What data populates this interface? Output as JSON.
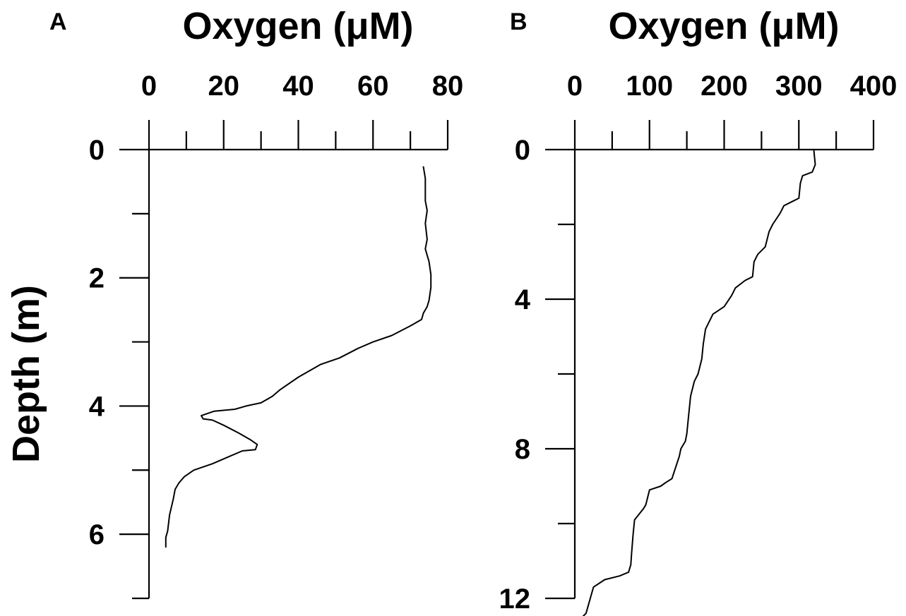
{
  "chart_data": [
    {
      "type": "line",
      "panel_label": "A",
      "xlabel": "Oxygen (μM)",
      "ylabel": "Depth (m)",
      "xlim": [
        0,
        80
      ],
      "ylim": [
        0,
        7
      ],
      "y_inverted": true,
      "x_axis_position": "top",
      "grid": false,
      "x_ticks": [
        0,
        20,
        40,
        60,
        80
      ],
      "x_minor_ticks": [
        10,
        30,
        50,
        70
      ],
      "y_ticks": [
        0,
        2,
        4,
        6
      ],
      "y_minor_ticks": [
        1,
        3,
        5,
        7
      ],
      "series": [
        {
          "x": [
            73.5,
            74,
            74,
            74.5,
            74,
            74.5,
            74,
            75,
            75.5,
            75.5,
            75,
            74.5,
            73.5,
            73,
            70,
            65,
            60,
            56,
            51,
            46,
            40,
            35,
            33,
            30,
            26,
            23,
            17.5,
            14,
            14.5,
            17,
            20,
            24,
            27,
            29,
            28.5,
            25,
            21,
            17,
            12,
            9.5,
            8,
            7,
            6.5,
            5.5,
            5,
            4.5,
            4.5
          ],
          "y": [
            0.27,
            0.45,
            0.8,
            0.95,
            1.15,
            1.4,
            1.55,
            1.75,
            1.95,
            2.15,
            2.35,
            2.45,
            2.55,
            2.65,
            2.75,
            2.9,
            3.0,
            3.1,
            3.25,
            3.35,
            3.55,
            3.75,
            3.85,
            3.95,
            4.0,
            4.05,
            4.08,
            4.15,
            4.2,
            4.22,
            4.3,
            4.42,
            4.52,
            4.6,
            4.68,
            4.7,
            4.8,
            4.9,
            5.0,
            5.1,
            5.2,
            5.3,
            5.45,
            5.7,
            5.95,
            6.05,
            6.2
          ]
        }
      ]
    },
    {
      "type": "line",
      "panel_label": "B",
      "xlabel": "Oxygen (μM)",
      "ylabel": "",
      "xlim": [
        0,
        400
      ],
      "ylim": [
        0,
        12
      ],
      "y_inverted": true,
      "x_axis_position": "top",
      "grid": false,
      "x_ticks": [
        0,
        100,
        200,
        300,
        400
      ],
      "x_minor_ticks": [
        50,
        150,
        250,
        350
      ],
      "y_ticks": [
        0,
        4,
        8,
        12
      ],
      "y_minor_ticks": [
        2,
        6,
        10
      ],
      "series": [
        {
          "x": [
            320,
            322,
            318,
            305,
            302,
            300,
            290,
            280,
            275,
            265,
            260,
            255,
            245,
            240,
            238,
            228,
            215,
            210,
            200,
            185,
            175,
            172,
            170,
            165,
            160,
            155,
            152,
            150,
            148,
            142,
            140,
            130,
            122,
            115,
            100,
            95,
            92,
            80,
            78,
            76,
            75,
            72,
            60,
            40,
            25,
            15,
            5
          ],
          "y": [
            0.0,
            0.4,
            0.6,
            0.7,
            0.9,
            1.3,
            1.4,
            1.5,
            1.7,
            2.0,
            2.2,
            2.6,
            2.8,
            3.0,
            3.4,
            3.5,
            3.7,
            3.9,
            4.2,
            4.4,
            4.8,
            5.2,
            5.6,
            6.0,
            6.2,
            6.6,
            7.2,
            7.6,
            7.8,
            8.0,
            8.2,
            8.8,
            8.9,
            9.0,
            9.1,
            9.5,
            9.6,
            9.9,
            10.3,
            10.8,
            11.1,
            11.3,
            11.4,
            11.5,
            11.7,
            12.4,
            12.6
          ]
        }
      ]
    }
  ]
}
